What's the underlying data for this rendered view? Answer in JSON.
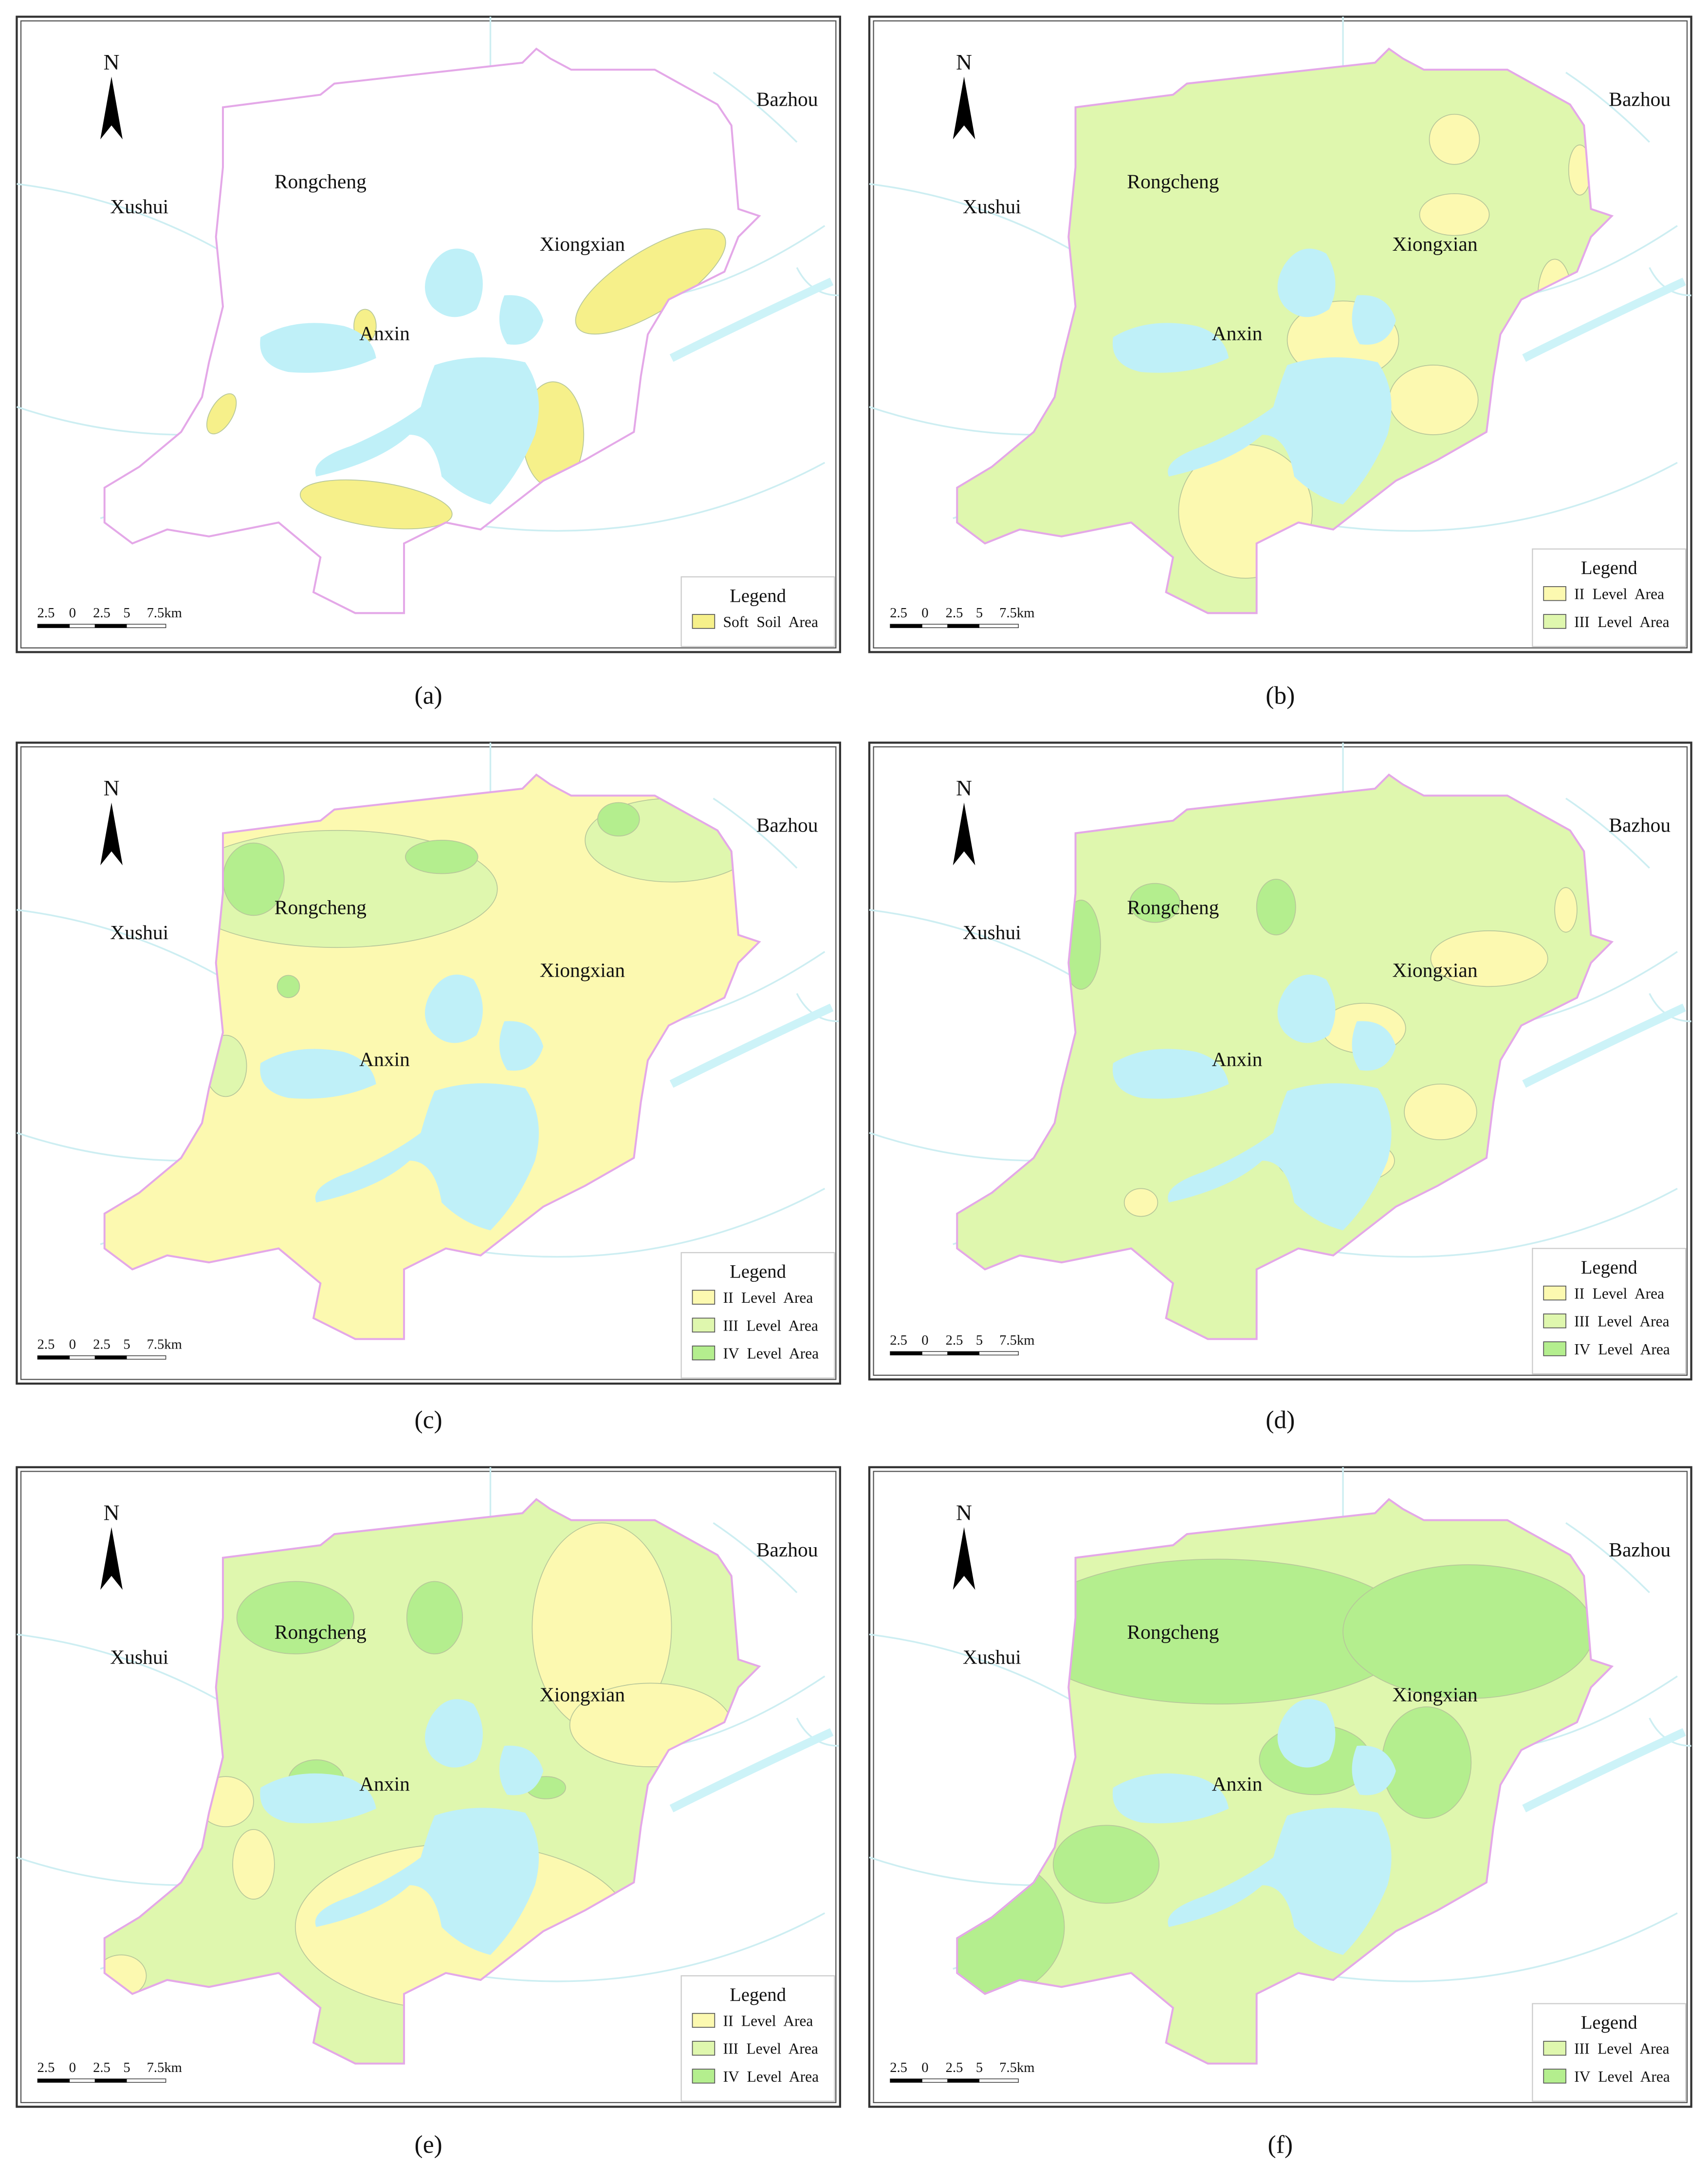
{
  "panels": [
    {
      "label": "(a)",
      "north": "N",
      "places": [
        "Bazhou",
        "Rongcheng",
        "Xushui",
        "Xiongxian",
        "Anxin"
      ],
      "scale": [
        "2.5",
        "0",
        "2.5",
        "5",
        "7.5km"
      ],
      "legend": {
        "title": "Legend",
        "items": [
          {
            "text": "Soft Soil Area",
            "color": "#f6f08a"
          }
        ]
      }
    },
    {
      "label": "(b)",
      "north": "N",
      "places": [
        "Bazhou",
        "Rongcheng",
        "Xushui",
        "Xiongxian",
        "Anxin"
      ],
      "scale": [
        "2.5",
        "0",
        "2.5",
        "5",
        "7.5km"
      ],
      "legend": {
        "title": "Legend",
        "items": [
          {
            "text": "II Level Area",
            "color": "#fcf9b0"
          },
          {
            "text": "III Level Area",
            "color": "#dff7ae"
          }
        ]
      }
    },
    {
      "label": "(c)",
      "north": "N",
      "places": [
        "Bazhou",
        "Rongcheng",
        "Xushui",
        "Xiongxian",
        "Anxin"
      ],
      "scale": [
        "2.5",
        "0",
        "2.5",
        "5",
        "7.5km"
      ],
      "legend": {
        "title": "Legend",
        "items": [
          {
            "text": "II Level Area",
            "color": "#fcf9b0"
          },
          {
            "text": "III Level Area",
            "color": "#dff7ae"
          },
          {
            "text": "IV Level Area",
            "color": "#b4ee8e"
          }
        ]
      }
    },
    {
      "label": "(d)",
      "north": "N",
      "places": [
        "Bazhou",
        "Rongcheng",
        "Xushui",
        "Xiongxian",
        "Anxin"
      ],
      "scale": [
        "2.5",
        "0",
        "2.5",
        "5",
        "7.5km"
      ],
      "legend": {
        "title": "Legend",
        "items": [
          {
            "text": "II Level Area",
            "color": "#fcf9b0"
          },
          {
            "text": "III Level Area",
            "color": "#dff7ae"
          },
          {
            "text": "IV Level Area",
            "color": "#b4ee8e"
          }
        ]
      }
    },
    {
      "label": "(e)",
      "north": "N",
      "places": [
        "Bazhou",
        "Rongcheng",
        "Xushui",
        "Xiongxian",
        "Anxin"
      ],
      "scale": [
        "2.5",
        "0",
        "2.5",
        "5",
        "7.5km"
      ],
      "legend": {
        "title": "Legend",
        "items": [
          {
            "text": "II Level Area",
            "color": "#fcf9b0"
          },
          {
            "text": "III Level Area",
            "color": "#dff7ae"
          },
          {
            "text": "IV Level Area",
            "color": "#b4ee8e"
          }
        ]
      }
    },
    {
      "label": "(f)",
      "north": "N",
      "places": [
        "Bazhou",
        "Rongcheng",
        "Xushui",
        "Xiongxian",
        "Anxin"
      ],
      "scale": [
        "2.5",
        "0",
        "2.5",
        "5",
        "7.5km"
      ],
      "legend": {
        "title": "Legend",
        "items": [
          {
            "text": "III Level Area",
            "color": "#dff7ae"
          },
          {
            "text": "IV Level Area",
            "color": "#b4ee8e"
          }
        ]
      }
    }
  ]
}
